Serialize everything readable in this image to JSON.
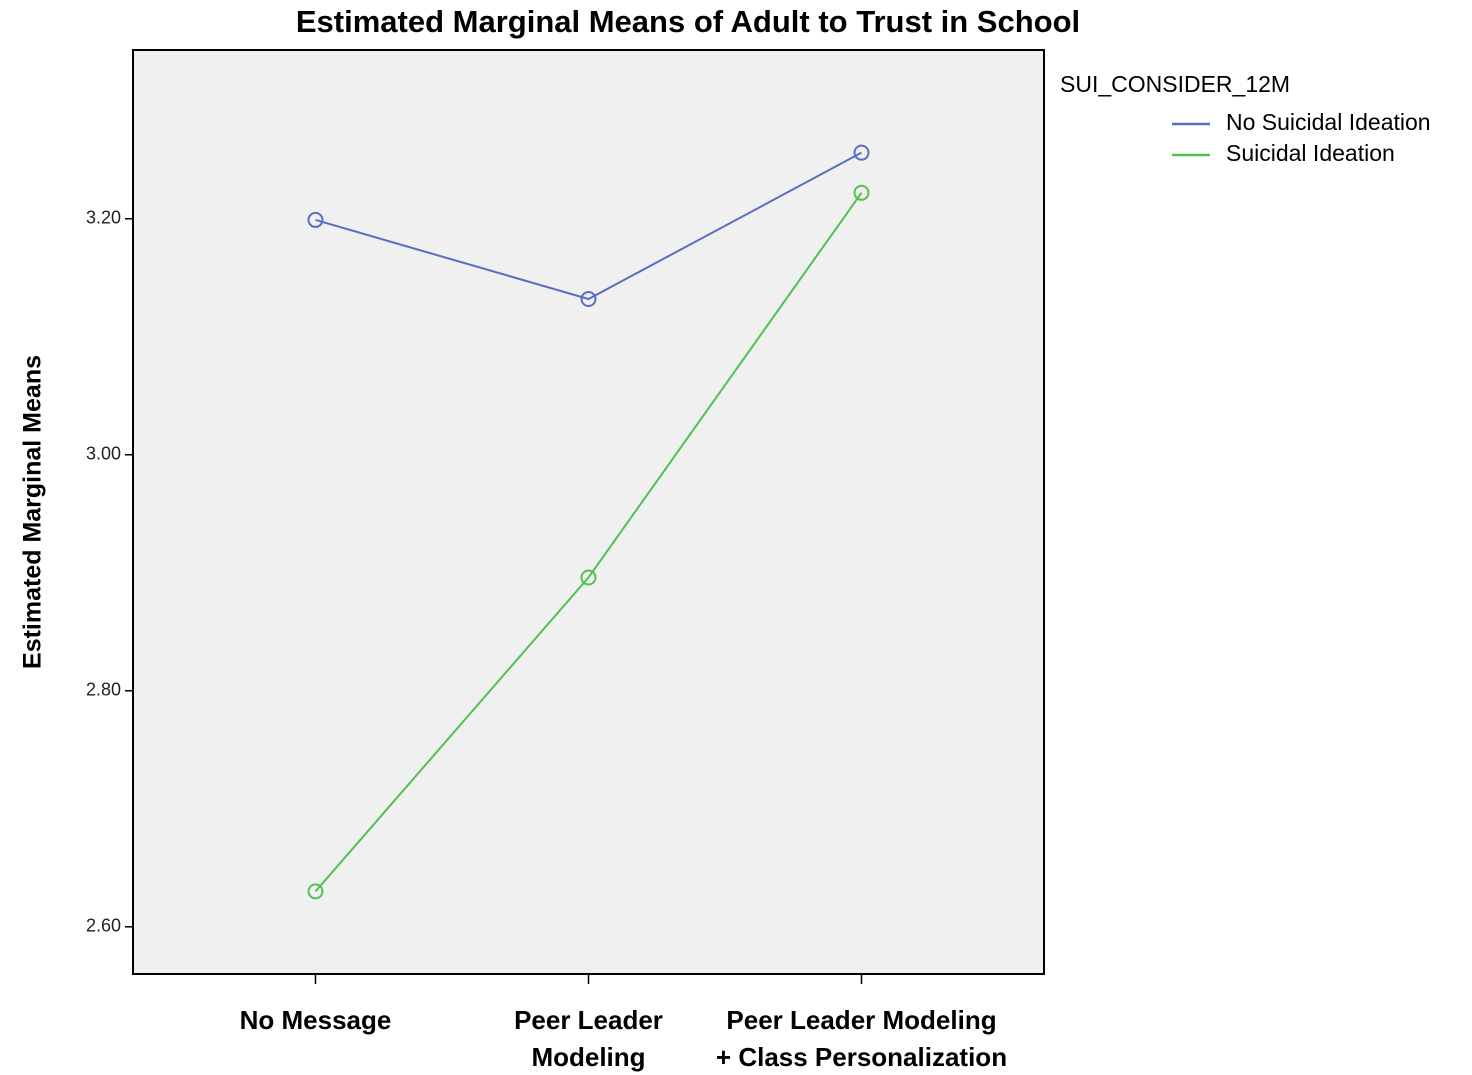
{
  "chart_data": {
    "type": "line",
    "title": "Estimated Marginal Means of Adult to Trust in School",
    "y_label": "Estimated Marginal Means",
    "categories": [
      [
        "No Message"
      ],
      [
        "Peer Leader",
        "Modeling"
      ],
      [
        "Peer Leader Modeling",
        "+ Class Personalization"
      ]
    ],
    "legend_title": "SUI_CONSIDER_12M",
    "series": [
      {
        "name": "No Suicidal Ideation",
        "color": "#5b6ec4",
        "values": [
          3.199,
          3.132,
          3.256
        ]
      },
      {
        "name": "Suicidal Ideation",
        "color": "#4fc24f",
        "values": [
          2.63,
          2.896,
          3.222
        ]
      }
    ],
    "ylim": [
      2.56,
      3.343
    ],
    "yticks": [
      {
        "value": 2.6,
        "label": "2.60"
      },
      {
        "value": 2.8,
        "label": "2.80"
      },
      {
        "value": 3.0,
        "label": "3.00"
      },
      {
        "value": 3.2,
        "label": "3.20"
      }
    ],
    "marker": "circle-open",
    "background": "#f0f0f0"
  }
}
